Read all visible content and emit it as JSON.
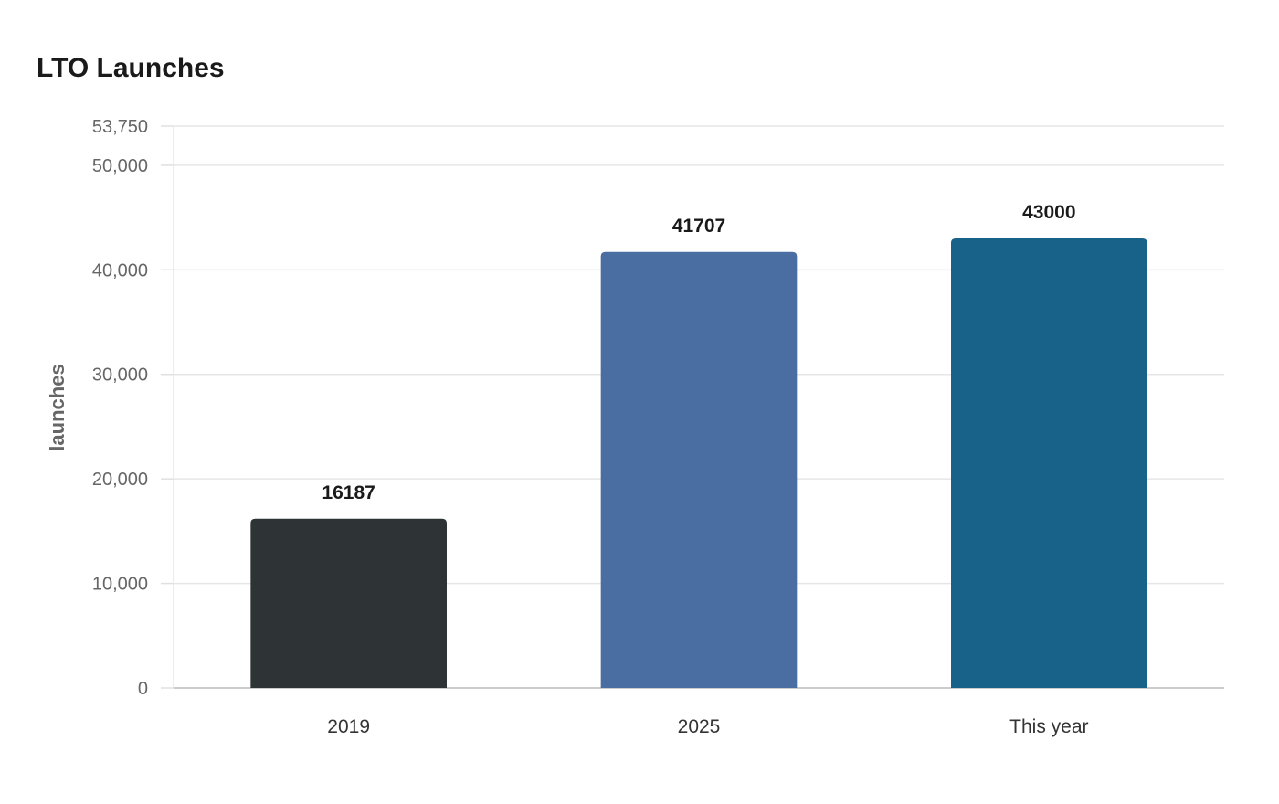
{
  "chart_data": {
    "type": "bar",
    "title": "LTO Launches",
    "xlabel": "",
    "ylabel": "launches",
    "categories": [
      "2019",
      "2025",
      "This year"
    ],
    "values": [
      16187,
      41707,
      43000
    ],
    "value_labels": [
      "16187",
      "41707",
      "43000"
    ],
    "bar_colors": [
      "#2e3436",
      "#4a6ea1",
      "#186189"
    ],
    "ylim": [
      0,
      53750
    ],
    "yticks": [
      0,
      10000,
      20000,
      30000,
      40000,
      50000,
      53750
    ],
    "ytick_labels": [
      "0",
      "10,000",
      "20,000",
      "30,000",
      "40,000",
      "50,000",
      "53,750"
    ],
    "grid": true,
    "legend": "none"
  }
}
